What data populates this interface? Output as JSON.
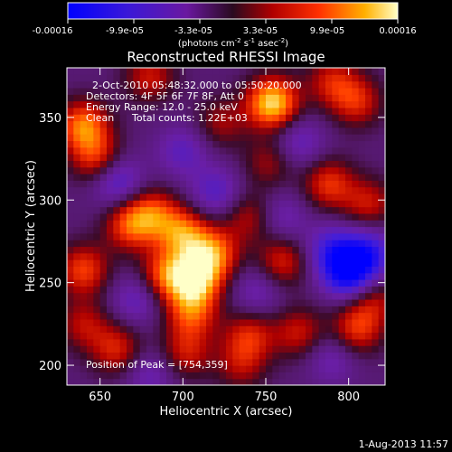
{
  "chart_data": {
    "type": "heatmap",
    "title": "Reconstructed RHESSI Image",
    "xlabel": "Heliocentric X (arcsec)",
    "ylabel": "Heliocentric Y (arcsec)",
    "xlim": [
      630,
      822
    ],
    "ylim": [
      188,
      380
    ],
    "xticks": [
      "650",
      "700",
      "750",
      "800"
    ],
    "xtick_values": [
      650,
      700,
      750,
      800
    ],
    "yticks": [
      "200",
      "250",
      "300",
      "350"
    ],
    "ytick_values": [
      200,
      250,
      300,
      350
    ],
    "colorbar": {
      "min": -0.00016,
      "max": 0.00016,
      "tick_labels": [
        "-0.00016",
        "-9.9e-05",
        "-3.3e-05",
        "3.3e-05",
        "9.9e-05",
        "0.00016"
      ],
      "unit_label": "(photons cm",
      "unit_sup1": "-2",
      "unit_mid": " s",
      "unit_sup2": "-1",
      "unit_mid2": " asec",
      "unit_sup3": "-2",
      "unit_end": ")"
    },
    "annotations": {
      "time_range": "2-Oct-2010 05:48:32.000 to 05:50:20.000",
      "detectors": "Detectors: 4F 5F 6F 7F 8F, Att 0",
      "energy": "Energy Range: 12.0 - 25.0 keV",
      "clean": "Clean",
      "counts": "Total counts: 1.22E+03",
      "peak": "Position of Peak = [754,359]"
    },
    "peak": [
      754,
      359
    ],
    "blobs": [
      {
        "x": 754,
        "y": 359,
        "v": 1.0
      },
      {
        "x": 708,
        "y": 252,
        "v": 0.85
      },
      {
        "x": 700,
        "y": 280,
        "v": 0.7
      },
      {
        "x": 718,
        "y": 268,
        "v": 0.72
      },
      {
        "x": 690,
        "y": 255,
        "v": 0.65
      },
      {
        "x": 705,
        "y": 232,
        "v": 0.6
      },
      {
        "x": 640,
        "y": 345,
        "v": 0.75
      },
      {
        "x": 648,
        "y": 325,
        "v": 0.55
      },
      {
        "x": 640,
        "y": 258,
        "v": 0.6
      },
      {
        "x": 668,
        "y": 285,
        "v": 0.6
      },
      {
        "x": 682,
        "y": 292,
        "v": 0.55
      },
      {
        "x": 660,
        "y": 210,
        "v": 0.5
      },
      {
        "x": 702,
        "y": 208,
        "v": 0.45
      },
      {
        "x": 740,
        "y": 218,
        "v": 0.5
      },
      {
        "x": 770,
        "y": 220,
        "v": 0.45
      },
      {
        "x": 805,
        "y": 222,
        "v": 0.55
      },
      {
        "x": 815,
        "y": 240,
        "v": 0.4
      },
      {
        "x": 788,
        "y": 310,
        "v": 0.55
      },
      {
        "x": 812,
        "y": 298,
        "v": 0.45
      },
      {
        "x": 760,
        "y": 263,
        "v": 0.5
      },
      {
        "x": 740,
        "y": 290,
        "v": 0.4
      },
      {
        "x": 805,
        "y": 360,
        "v": 0.5
      },
      {
        "x": 790,
        "y": 372,
        "v": 0.45
      },
      {
        "x": 680,
        "y": 375,
        "v": 0.45
      },
      {
        "x": 723,
        "y": 347,
        "v": 0.35
      },
      {
        "x": 752,
        "y": 323,
        "v": 0.35
      },
      {
        "x": 640,
        "y": 225,
        "v": 0.4
      },
      {
        "x": 735,
        "y": 200,
        "v": 0.35
      },
      {
        "x": 800,
        "y": 256,
        "v": -0.85
      },
      {
        "x": 812,
        "y": 268,
        "v": -0.6
      },
      {
        "x": 790,
        "y": 270,
        "v": -0.5
      },
      {
        "x": 660,
        "y": 312,
        "v": -0.5
      },
      {
        "x": 720,
        "y": 305,
        "v": -0.4
      },
      {
        "x": 700,
        "y": 330,
        "v": -0.35
      },
      {
        "x": 672,
        "y": 240,
        "v": -0.35
      },
      {
        "x": 745,
        "y": 245,
        "v": -0.3
      },
      {
        "x": 770,
        "y": 335,
        "v": -0.35
      },
      {
        "x": 680,
        "y": 195,
        "v": -0.3
      },
      {
        "x": 760,
        "y": 290,
        "v": -0.3
      },
      {
        "x": 790,
        "y": 205,
        "v": -0.3
      }
    ]
  },
  "footer": {
    "date": "1-Aug-2013 11:57"
  }
}
